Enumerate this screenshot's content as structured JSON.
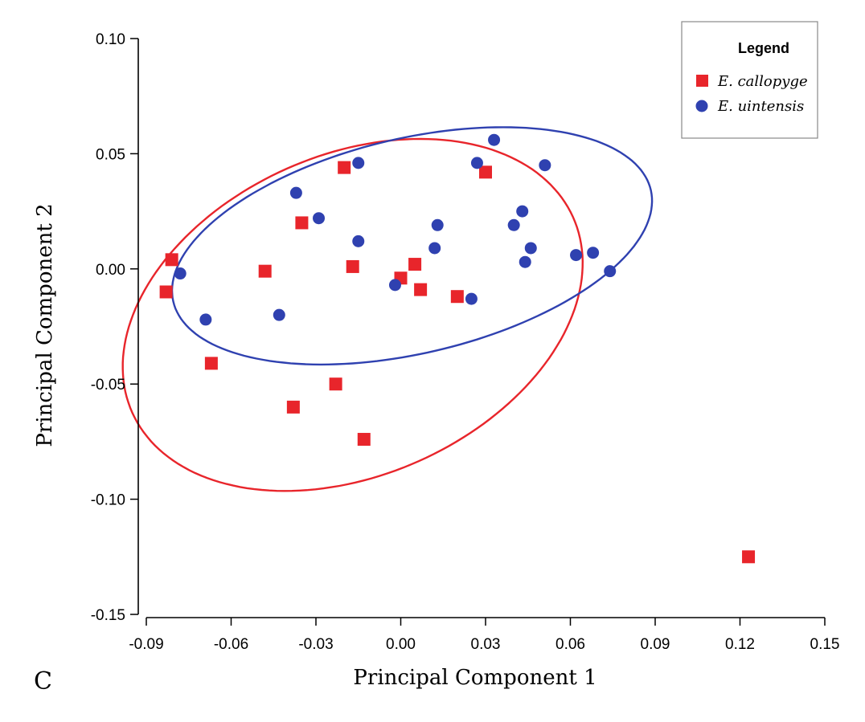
{
  "panel_letter": "C",
  "chart_data": {
    "type": "scatter",
    "title": "",
    "xlabel": "Principal Component 1",
    "ylabel": "Principal Component 2",
    "xlim": [
      -0.09,
      0.15
    ],
    "ylim": [
      -0.15,
      0.1
    ],
    "x_ticks": [
      "-0.09",
      "-0.06",
      "-0.03",
      "0.00",
      "0.03",
      "0.06",
      "0.09",
      "0.12",
      "0.15"
    ],
    "y_ticks": [
      "0.10",
      "0.05",
      "0.00",
      "-0.05",
      "-0.10",
      "-0.15"
    ],
    "grid": false,
    "legend": {
      "title": "Legend",
      "position": "top-right",
      "entries": [
        {
          "label": "E. callopyge",
          "marker": "square",
          "color": "#e8252b"
        },
        {
          "label": "E. uintensis",
          "marker": "circle",
          "color": "#2f41b0"
        }
      ]
    },
    "series": [
      {
        "name": "E. callopyge",
        "marker": "square",
        "color": "#e8252b",
        "points": [
          [
            -0.081,
            0.004
          ],
          [
            -0.083,
            -0.01
          ],
          [
            -0.067,
            -0.041
          ],
          [
            -0.048,
            -0.001
          ],
          [
            -0.035,
            0.02
          ],
          [
            -0.038,
            -0.06
          ],
          [
            -0.023,
            -0.05
          ],
          [
            -0.02,
            0.044
          ],
          [
            -0.017,
            0.001
          ],
          [
            -0.013,
            -0.074
          ],
          [
            0.0,
            -0.004
          ],
          [
            0.005,
            0.002
          ],
          [
            0.007,
            -0.009
          ],
          [
            0.02,
            -0.012
          ],
          [
            0.03,
            0.042
          ],
          [
            0.123,
            -0.125
          ]
        ],
        "ellipse": {
          "center": [
            -0.017,
            -0.02
          ],
          "semi_axes": [
            0.066,
            0.09
          ],
          "angle_deg": -51
        }
      },
      {
        "name": "E. uintensis",
        "marker": "circle",
        "color": "#2f41b0",
        "points": [
          [
            -0.078,
            -0.002
          ],
          [
            -0.069,
            -0.022
          ],
          [
            -0.043,
            -0.02
          ],
          [
            -0.037,
            0.033
          ],
          [
            -0.029,
            0.022
          ],
          [
            -0.015,
            0.046
          ],
          [
            -0.015,
            0.012
          ],
          [
            -0.002,
            -0.007
          ],
          [
            0.012,
            0.009
          ],
          [
            0.013,
            0.019
          ],
          [
            0.025,
            -0.013
          ],
          [
            0.027,
            0.046
          ],
          [
            0.033,
            0.056
          ],
          [
            0.04,
            0.019
          ],
          [
            0.043,
            0.025
          ],
          [
            0.044,
            0.003
          ],
          [
            0.046,
            0.009
          ],
          [
            0.051,
            0.045
          ],
          [
            0.062,
            0.006
          ],
          [
            0.068,
            0.007
          ],
          [
            0.074,
            -0.001
          ]
        ],
        "ellipse": {
          "center": [
            0.004,
            0.01
          ],
          "semi_axes": [
            0.088,
            0.046
          ],
          "angle_deg": 18
        }
      }
    ]
  }
}
